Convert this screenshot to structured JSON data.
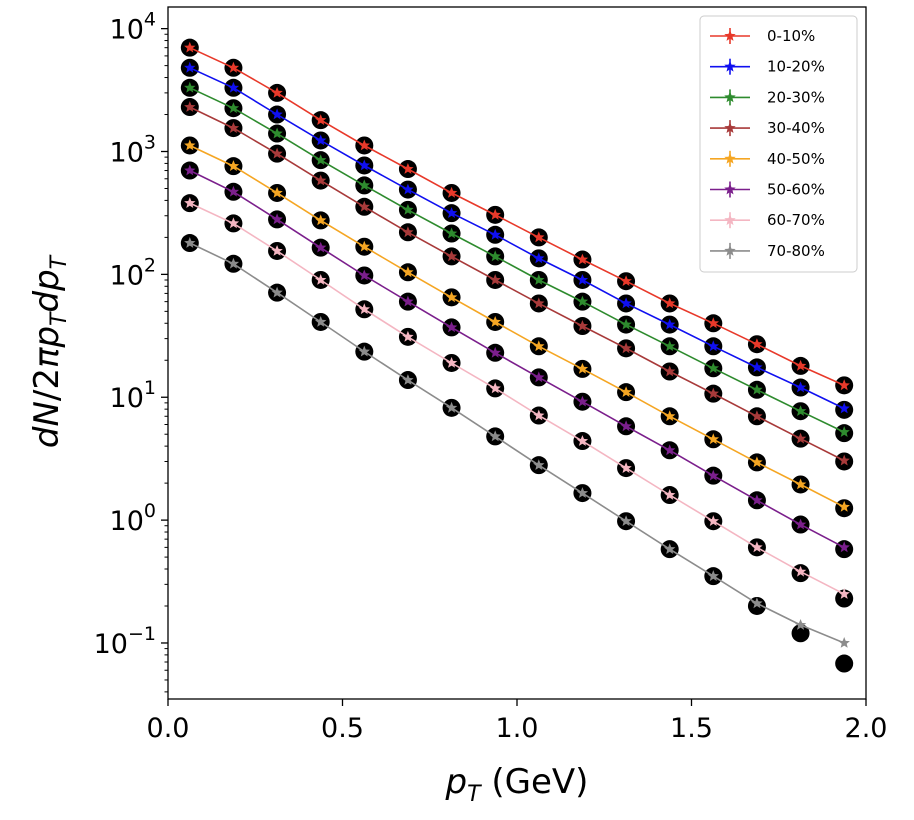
{
  "chart_data": {
    "type": "scatter",
    "title": "",
    "xlabel": "p_T (GeV)",
    "ylabel": "dN/2πp_T dp_T",
    "yscale": "log",
    "xlim": [
      0.0,
      2.0
    ],
    "ylim": [
      0.035,
      15000
    ],
    "xticks": [
      {
        "value": 0.0,
        "label": "0.0"
      },
      {
        "value": 0.5,
        "label": "0.5"
      },
      {
        "value": 1.0,
        "label": "1.0"
      },
      {
        "value": 1.5,
        "label": "1.5"
      },
      {
        "value": 2.0,
        "label": "2.0"
      }
    ],
    "yticks": [
      {
        "exp": 4,
        "label_base": "10",
        "label_exp": "4"
      },
      {
        "exp": 3,
        "label_base": "10",
        "label_exp": "3"
      },
      {
        "exp": 2,
        "label_base": "10",
        "label_exp": "2"
      },
      {
        "exp": 1,
        "label_base": "10",
        "label_exp": "1"
      },
      {
        "exp": 0,
        "label_base": "10",
        "label_exp": "0"
      },
      {
        "exp": -1,
        "label_base": "10",
        "label_exp": "−1"
      }
    ],
    "legend_position": "top-right",
    "x": [
      0.0625,
      0.1875,
      0.3125,
      0.4375,
      0.5625,
      0.6875,
      0.8125,
      0.9375,
      1.0625,
      1.1875,
      1.3125,
      1.4375,
      1.5625,
      1.6875,
      1.8125,
      1.9375
    ],
    "data_marker": "black filled circles",
    "series": [
      {
        "name": "0-10%",
        "color": "#e8392a",
        "model": [
          7000,
          4800,
          3000,
          1800,
          1120,
          720,
          460,
          305,
          200,
          132,
          88,
          58,
          40,
          27,
          18,
          12.5
        ],
        "data": [
          7000,
          4800,
          3000,
          1800,
          1120,
          720,
          460,
          305,
          200,
          132,
          88,
          58,
          40,
          27,
          18,
          12.5
        ]
      },
      {
        "name": "10-20%",
        "color": "#1010f0",
        "model": [
          4800,
          3300,
          2000,
          1230,
          770,
          490,
          315,
          210,
          135,
          90,
          58,
          39,
          26,
          17.5,
          12,
          8.1
        ],
        "data": [
          4800,
          3300,
          2000,
          1230,
          770,
          490,
          315,
          210,
          135,
          90,
          58,
          39,
          26,
          17.5,
          12,
          7.9
        ]
      },
      {
        "name": "20-30%",
        "color": "#2e8b2e",
        "model": [
          3300,
          2250,
          1400,
          850,
          530,
          335,
          215,
          140,
          90,
          60,
          39,
          26,
          17.2,
          11.5,
          7.7,
          5.2
        ],
        "data": [
          3300,
          2250,
          1400,
          850,
          530,
          335,
          215,
          140,
          90,
          60,
          39,
          26,
          17.2,
          11.5,
          7.7,
          5.1
        ]
      },
      {
        "name": "30-40%",
        "color": "#a83a3a",
        "model": [
          2300,
          1550,
          960,
          580,
          355,
          220,
          140,
          90,
          58,
          38,
          25,
          16.2,
          10.7,
          7.0,
          4.6,
          3.05
        ],
        "data": [
          2300,
          1550,
          960,
          580,
          355,
          220,
          140,
          90,
          58,
          38,
          25,
          16.2,
          10.7,
          7.0,
          4.6,
          3.0
        ]
      },
      {
        "name": "40-50%",
        "color": "#f5a623",
        "model": [
          1120,
          760,
          460,
          275,
          168,
          104,
          65,
          41,
          26,
          17,
          11,
          7.0,
          4.55,
          2.95,
          1.95,
          1.28
        ],
        "data": [
          1120,
          760,
          460,
          275,
          168,
          104,
          65,
          41,
          26,
          17,
          11,
          7.0,
          4.55,
          2.95,
          1.95,
          1.25
        ]
      },
      {
        "name": "50-60%",
        "color": "#7b1f8c",
        "model": [
          700,
          470,
          280,
          165,
          98,
          60,
          37,
          23,
          14.5,
          9.2,
          5.8,
          3.7,
          2.3,
          1.45,
          0.92,
          0.6
        ],
        "data": [
          700,
          470,
          280,
          165,
          98,
          60,
          37,
          23,
          14.5,
          9.2,
          5.8,
          3.7,
          2.3,
          1.45,
          0.92,
          0.58
        ]
      },
      {
        "name": "60-70%",
        "color": "#f4b6c2",
        "model": [
          380,
          260,
          155,
          90,
          52,
          31,
          19,
          11.8,
          7.1,
          4.4,
          2.65,
          1.6,
          0.98,
          0.6,
          0.38,
          0.25
        ],
        "data": [
          380,
          260,
          155,
          90,
          52,
          31,
          19,
          11.8,
          7.1,
          4.4,
          2.65,
          1.6,
          0.98,
          0.6,
          0.37,
          0.23
        ]
      },
      {
        "name": "70-80%",
        "color": "#8c8c8c",
        "model": [
          180,
          122,
          71,
          41,
          23.5,
          13.8,
          8.2,
          4.8,
          2.8,
          1.66,
          0.98,
          0.58,
          0.35,
          0.21,
          0.14,
          0.1
        ],
        "data": [
          180,
          122,
          71,
          41,
          23.5,
          13.8,
          8.2,
          4.8,
          2.8,
          1.66,
          0.98,
          0.58,
          0.35,
          0.2,
          0.12,
          0.068
        ]
      }
    ]
  }
}
